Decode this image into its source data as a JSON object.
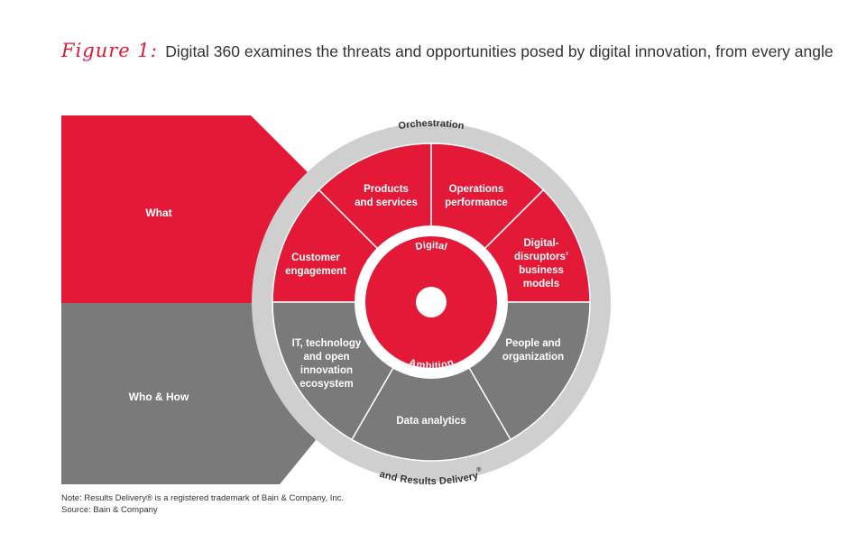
{
  "title": {
    "figure_label": "Figure 1:",
    "text": "Digital 360 examines the threats and opportunities posed by digital innovation, from every angle"
  },
  "left_bands": {
    "top_label": "What",
    "bottom_label": "Who & How"
  },
  "ring": {
    "top_label": "Orchestration",
    "bottom_label": "and Results Delivery",
    "bottom_mark": "®"
  },
  "segments": {
    "customer_engagement": [
      "Customer",
      "engagement"
    ],
    "products_services": [
      "Products",
      "and services"
    ],
    "operations_performance": [
      "Operations",
      "performance"
    ],
    "digital_disruptors": [
      "Digital-",
      "disruptors’",
      "business",
      "models"
    ],
    "people_organization": [
      "People and",
      "organization"
    ],
    "data_analytics": [
      "Data analytics"
    ],
    "it_technology": [
      "IT, technology",
      "and open",
      "innovation",
      "ecosystem"
    ]
  },
  "center": {
    "top_word": "Digital",
    "bottom_word": "Ambition"
  },
  "notes": {
    "note": "Note: Results Delivery® is a registered trademark of Bain & Company, Inc.",
    "source": "Source: Bain & Company"
  },
  "colors": {
    "red": "#e31937",
    "gray": "#7a7a7a",
    "ring": "#cfcfcf",
    "text_dark": "#333333"
  }
}
